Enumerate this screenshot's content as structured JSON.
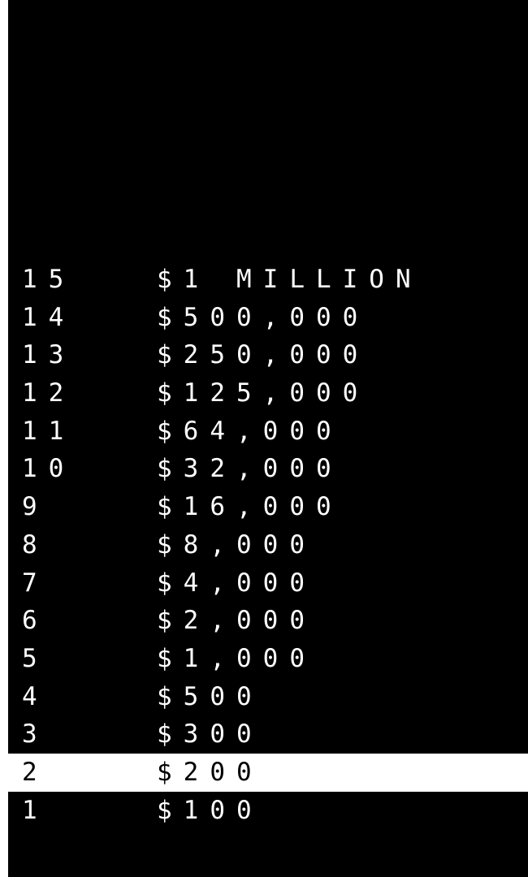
{
  "colors": {
    "background": "#000000",
    "text": "#ffffff",
    "highlight_background": "#ffffff",
    "highlight_text": "#000000"
  },
  "money_ladder": {
    "current_level": 2,
    "levels": [
      {
        "number": "15",
        "prize": "$1 MILLION"
      },
      {
        "number": "14",
        "prize": "$500,000"
      },
      {
        "number": "13",
        "prize": "$250,000"
      },
      {
        "number": "12",
        "prize": "$125,000"
      },
      {
        "number": "11",
        "prize": "$64,000"
      },
      {
        "number": "10",
        "prize": "$32,000"
      },
      {
        "number": "9",
        "prize": "$16,000"
      },
      {
        "number": "8",
        "prize": "$8,000"
      },
      {
        "number": "7",
        "prize": "$4,000"
      },
      {
        "number": "6",
        "prize": "$2,000"
      },
      {
        "number": "5",
        "prize": "$1,000"
      },
      {
        "number": "4",
        "prize": "$500"
      },
      {
        "number": "3",
        "prize": "$300"
      },
      {
        "number": "2",
        "prize": "$200"
      },
      {
        "number": "1",
        "prize": "$100"
      }
    ]
  }
}
